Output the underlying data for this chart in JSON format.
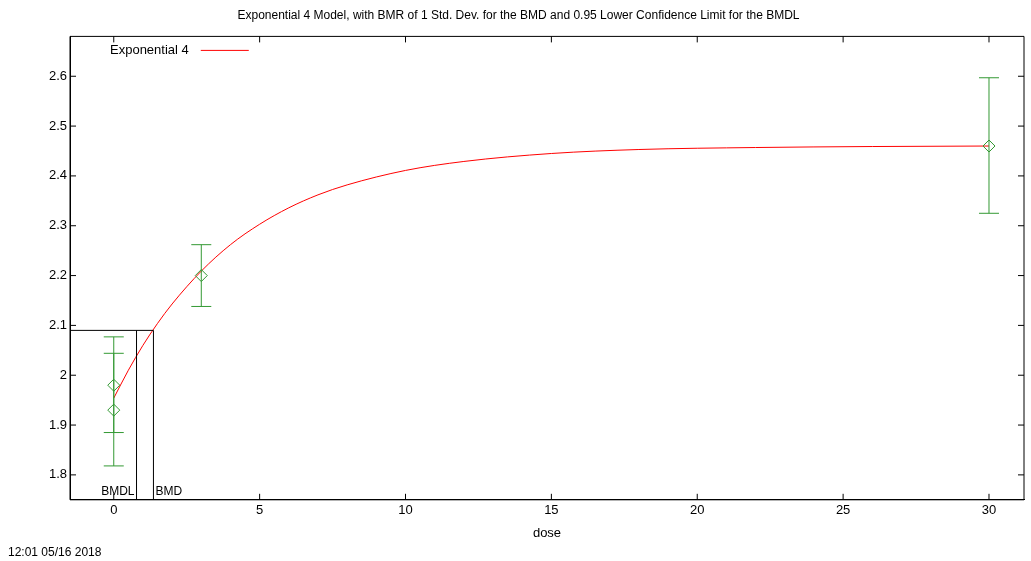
{
  "chart_data": {
    "type": "scatter",
    "title": "Exponential 4 Model, with BMR of 1 Std. Dev. for the BMD and 0.95 Lower Confidence Limit for the BMDL",
    "xlabel": "dose",
    "annotations": [
      "12:01 05/16 2018"
    ],
    "xlim": [
      -1.5,
      31.2
    ],
    "xticks": [
      0,
      5,
      10,
      15,
      20,
      25,
      30
    ],
    "ylim": [
      1.75,
      2.68
    ],
    "yticks": [
      1.8,
      1.9,
      2,
      2.1,
      2.2,
      2.3,
      2.4,
      2.5,
      2.6
    ],
    "grid": false,
    "legend": "top left",
    "series": [
      {
        "color": "#339933",
        "marker": "diamond",
        "x": [
          0,
          0,
          3,
          30
        ],
        "values": [
          1.93,
          1.98,
          2.2,
          2.46
        ],
        "errors": [
          [
            1.818,
            2.044
          ],
          [
            1.885,
            2.077
          ],
          [
            2.138,
            2.262
          ],
          [
            2.325,
            2.597
          ]
        ]
      },
      {
        "type": "line",
        "name": "Exponential 4",
        "color": "#ff0000",
        "marker": "none",
        "line_style": "solid",
        "x": [
          0,
          0.5,
          1,
          1.5,
          2,
          3,
          4,
          5,
          6,
          7,
          8,
          10,
          12,
          15,
          18,
          22,
          26,
          30
        ],
        "values": [
          1.954,
          2.01,
          2.06,
          2.104,
          2.143,
          2.209,
          2.262,
          2.303,
          2.336,
          2.362,
          2.382,
          2.411,
          2.429,
          2.445,
          2.453,
          2.457,
          2.459,
          2.46
        ]
      }
    ],
    "ref_lines": [
      {
        "axis": "y",
        "value": 2.09,
        "color": "#000000"
      },
      {
        "axis": "x",
        "value": 0.78,
        "label": "BMDL",
        "color": "#000000"
      },
      {
        "axis": "x",
        "value": 1.36,
        "label": "BMD",
        "color": "#000000"
      }
    ]
  }
}
